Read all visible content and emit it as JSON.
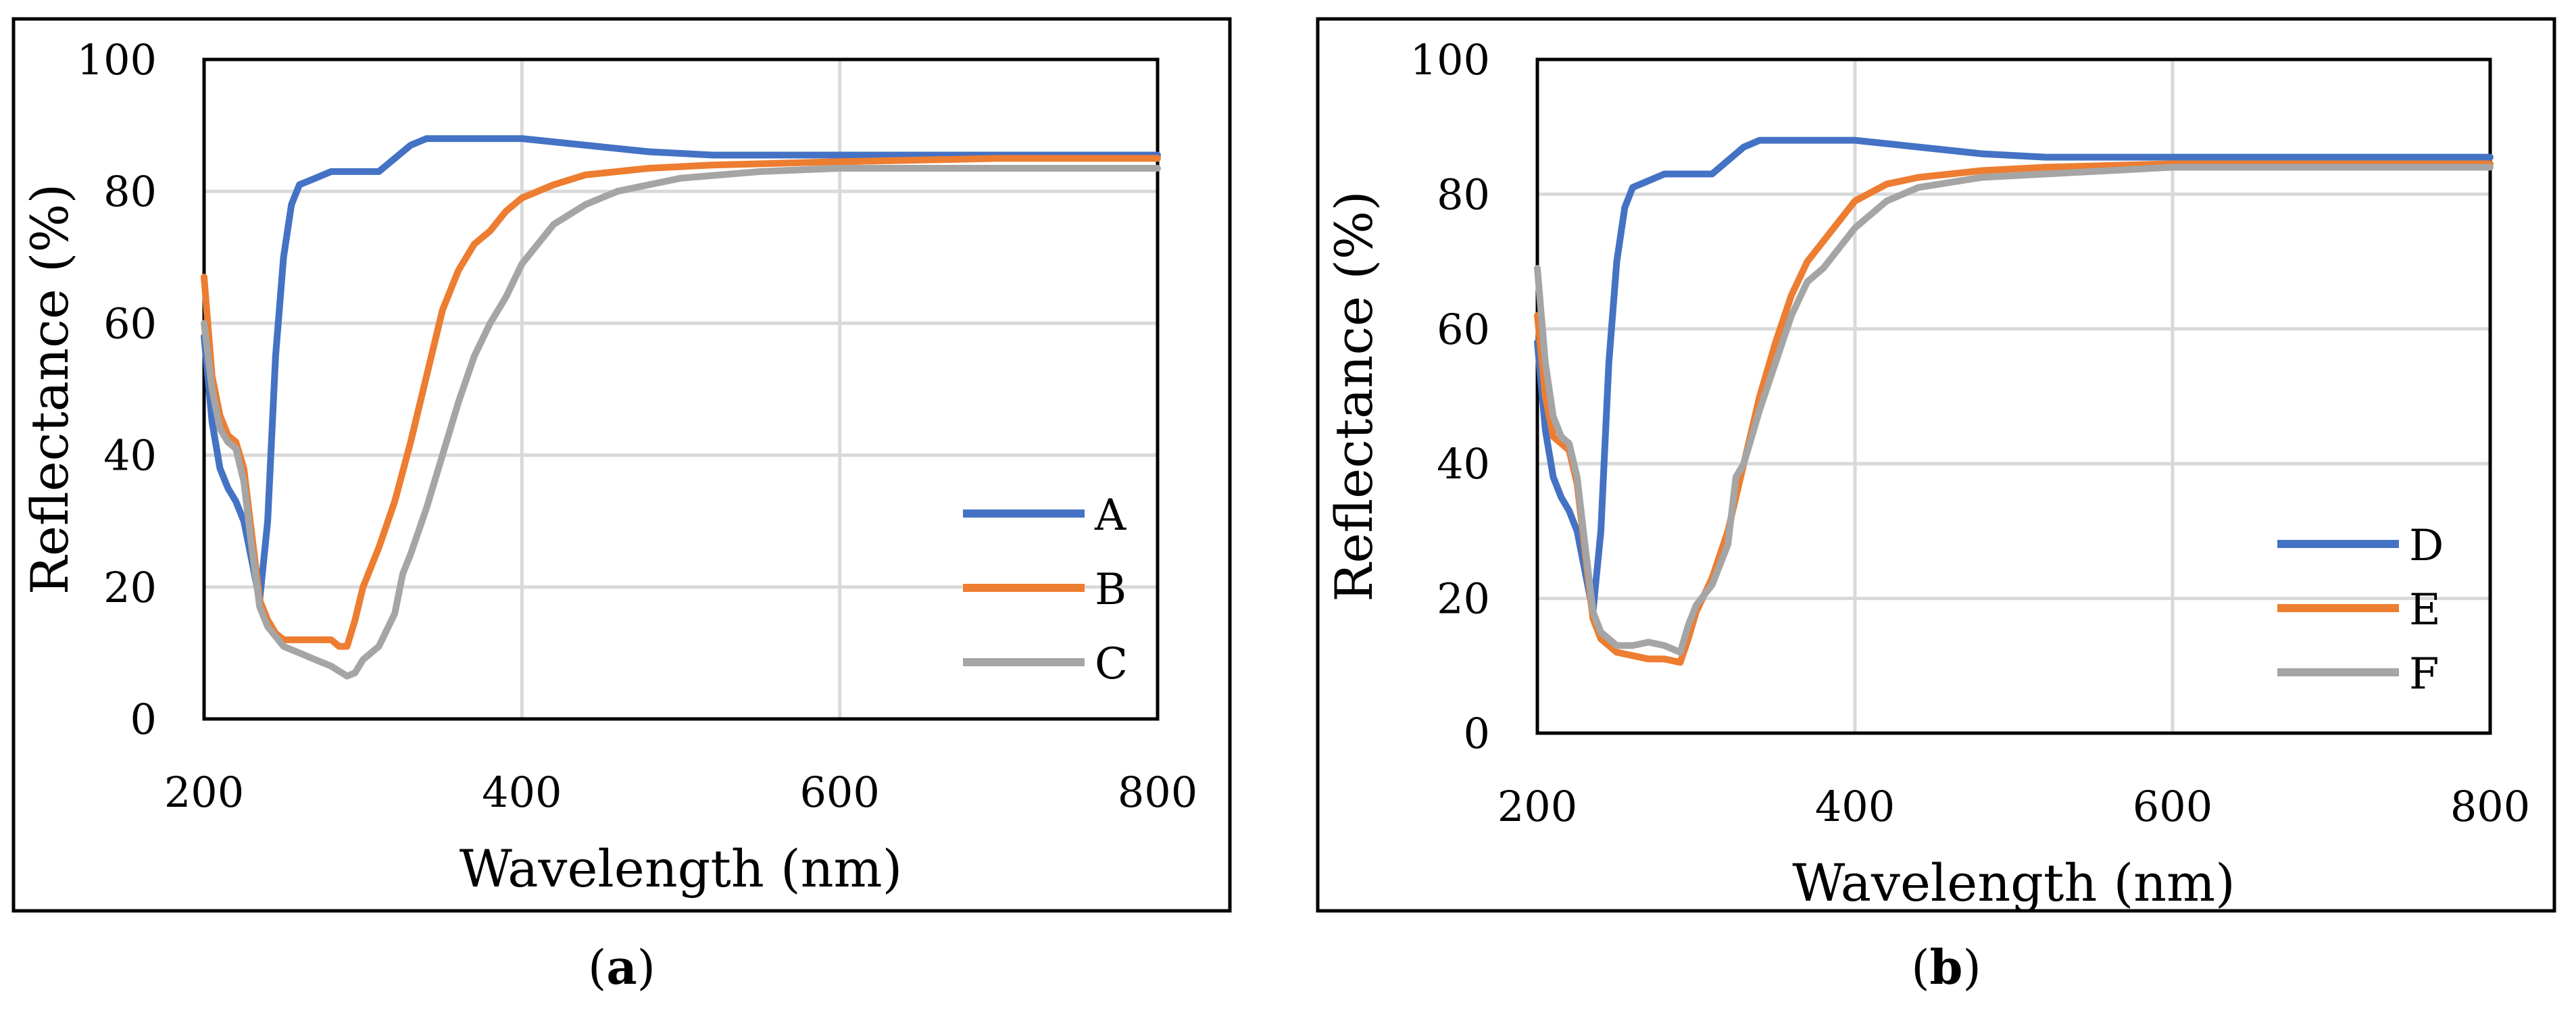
{
  "chart_data": [
    {
      "type": "line",
      "panel_label": "a",
      "title": "",
      "xlabel": "Wavelength (nm)",
      "ylabel": "Reflectance (%)",
      "xlim": [
        200,
        800
      ],
      "ylim": [
        0,
        100
      ],
      "xticks": [
        200,
        400,
        600,
        800
      ],
      "yticks": [
        0,
        20,
        40,
        60,
        80,
        100
      ],
      "grid": true,
      "legend": "bottom-right",
      "series": [
        {
          "name": "A",
          "color": "#4472C4",
          "points": [
            [
              200,
              58
            ],
            [
              205,
              45
            ],
            [
              210,
              38
            ],
            [
              215,
              35
            ],
            [
              220,
              33
            ],
            [
              225,
              30
            ],
            [
              230,
              24
            ],
            [
              235,
              18
            ],
            [
              240,
              30
            ],
            [
              245,
              55
            ],
            [
              250,
              70
            ],
            [
              255,
              78
            ],
            [
              260,
              81
            ],
            [
              270,
              82
            ],
            [
              280,
              83
            ],
            [
              290,
              83
            ],
            [
              300,
              83
            ],
            [
              310,
              83
            ],
            [
              320,
              85
            ],
            [
              330,
              87
            ],
            [
              340,
              88
            ],
            [
              360,
              88
            ],
            [
              400,
              88
            ],
            [
              440,
              87
            ],
            [
              480,
              86
            ],
            [
              520,
              85.5
            ],
            [
              600,
              85.5
            ],
            [
              700,
              85.5
            ],
            [
              800,
              85.5
            ]
          ]
        },
        {
          "name": "B",
          "color": "#ED7D31",
          "points": [
            [
              200,
              67
            ],
            [
              205,
              52
            ],
            [
              210,
              46
            ],
            [
              215,
              43
            ],
            [
              220,
              42
            ],
            [
              225,
              38
            ],
            [
              230,
              28
            ],
            [
              235,
              18
            ],
            [
              240,
              15
            ],
            [
              245,
              13
            ],
            [
              250,
              12
            ],
            [
              260,
              12
            ],
            [
              270,
              12
            ],
            [
              280,
              12
            ],
            [
              285,
              11
            ],
            [
              290,
              11
            ],
            [
              295,
              15
            ],
            [
              300,
              20
            ],
            [
              310,
              26
            ],
            [
              320,
              33
            ],
            [
              330,
              42
            ],
            [
              340,
              52
            ],
            [
              350,
              62
            ],
            [
              360,
              68
            ],
            [
              370,
              72
            ],
            [
              380,
              74
            ],
            [
              390,
              77
            ],
            [
              400,
              79
            ],
            [
              420,
              81
            ],
            [
              440,
              82.5
            ],
            [
              480,
              83.5
            ],
            [
              520,
              84
            ],
            [
              600,
              84.5
            ],
            [
              700,
              85
            ],
            [
              800,
              85
            ]
          ]
        },
        {
          "name": "C",
          "color": "#A5A5A5",
          "points": [
            [
              200,
              60
            ],
            [
              205,
              50
            ],
            [
              210,
              44
            ],
            [
              215,
              42
            ],
            [
              220,
              41
            ],
            [
              225,
              36
            ],
            [
              230,
              26
            ],
            [
              235,
              17
            ],
            [
              240,
              14
            ],
            [
              250,
              11
            ],
            [
              260,
              10
            ],
            [
              270,
              9
            ],
            [
              280,
              8
            ],
            [
              290,
              6.5
            ],
            [
              295,
              7
            ],
            [
              300,
              9
            ],
            [
              310,
              11
            ],
            [
              320,
              16
            ],
            [
              325,
              22
            ],
            [
              330,
              25
            ],
            [
              340,
              32
            ],
            [
              350,
              40
            ],
            [
              360,
              48
            ],
            [
              370,
              55
            ],
            [
              380,
              60
            ],
            [
              390,
              64
            ],
            [
              400,
              69
            ],
            [
              420,
              75
            ],
            [
              440,
              78
            ],
            [
              460,
              80
            ],
            [
              480,
              81
            ],
            [
              500,
              82
            ],
            [
              550,
              83
            ],
            [
              600,
              83.5
            ],
            [
              700,
              83.5
            ],
            [
              800,
              83.5
            ]
          ]
        }
      ]
    },
    {
      "type": "line",
      "panel_label": "b",
      "title": "",
      "xlabel": "Wavelength (nm)",
      "ylabel": "Reflectance (%)",
      "xlim": [
        200,
        800
      ],
      "ylim": [
        0,
        100
      ],
      "xticks": [
        200,
        400,
        600,
        800
      ],
      "yticks": [
        0,
        20,
        40,
        60,
        80,
        100
      ],
      "grid": true,
      "legend": "bottom-right",
      "series": [
        {
          "name": "D",
          "color": "#4472C4",
          "points": [
            [
              200,
              58
            ],
            [
              205,
              45
            ],
            [
              210,
              38
            ],
            [
              215,
              35
            ],
            [
              220,
              33
            ],
            [
              225,
              30
            ],
            [
              230,
              24
            ],
            [
              235,
              18
            ],
            [
              240,
              30
            ],
            [
              245,
              55
            ],
            [
              250,
              70
            ],
            [
              255,
              78
            ],
            [
              260,
              81
            ],
            [
              270,
              82
            ],
            [
              280,
              83
            ],
            [
              290,
              83
            ],
            [
              300,
              83
            ],
            [
              310,
              83
            ],
            [
              320,
              85
            ],
            [
              330,
              87
            ],
            [
              340,
              88
            ],
            [
              360,
              88
            ],
            [
              400,
              88
            ],
            [
              440,
              87
            ],
            [
              480,
              86
            ],
            [
              520,
              85.5
            ],
            [
              600,
              85.5
            ],
            [
              700,
              85.5
            ],
            [
              800,
              85.5
            ]
          ]
        },
        {
          "name": "E",
          "color": "#ED7D31",
          "points": [
            [
              200,
              62
            ],
            [
              205,
              50
            ],
            [
              210,
              44
            ],
            [
              215,
              43
            ],
            [
              220,
              42
            ],
            [
              225,
              37
            ],
            [
              230,
              27
            ],
            [
              235,
              17
            ],
            [
              240,
              14
            ],
            [
              250,
              12
            ],
            [
              260,
              11.5
            ],
            [
              270,
              11
            ],
            [
              280,
              11
            ],
            [
              290,
              10.5
            ],
            [
              295,
              14
            ],
            [
              300,
              18
            ],
            [
              310,
              23
            ],
            [
              320,
              30
            ],
            [
              330,
              40
            ],
            [
              340,
              50
            ],
            [
              350,
              58
            ],
            [
              360,
              65
            ],
            [
              370,
              70
            ],
            [
              380,
              73
            ],
            [
              390,
              76
            ],
            [
              400,
              79
            ],
            [
              420,
              81.5
            ],
            [
              440,
              82.5
            ],
            [
              480,
              83.5
            ],
            [
              520,
              84
            ],
            [
              600,
              84.5
            ],
            [
              700,
              84.5
            ],
            [
              800,
              84.5
            ]
          ]
        },
        {
          "name": "F",
          "color": "#A5A5A5",
          "points": [
            [
              200,
              69
            ],
            [
              205,
              55
            ],
            [
              210,
              47
            ],
            [
              215,
              44
            ],
            [
              220,
              43
            ],
            [
              225,
              38
            ],
            [
              230,
              28
            ],
            [
              235,
              18
            ],
            [
              240,
              15
            ],
            [
              250,
              13
            ],
            [
              260,
              13
            ],
            [
              270,
              13.5
            ],
            [
              280,
              13
            ],
            [
              290,
              12
            ],
            [
              295,
              16
            ],
            [
              300,
              19
            ],
            [
              310,
              22
            ],
            [
              320,
              28
            ],
            [
              325,
              38
            ],
            [
              330,
              40
            ],
            [
              340,
              48
            ],
            [
              350,
              55
            ],
            [
              360,
              62
            ],
            [
              370,
              67
            ],
            [
              380,
              69
            ],
            [
              390,
              72
            ],
            [
              400,
              75
            ],
            [
              420,
              79
            ],
            [
              440,
              81
            ],
            [
              480,
              82.5
            ],
            [
              520,
              83
            ],
            [
              600,
              84
            ],
            [
              700,
              84
            ],
            [
              800,
              84
            ]
          ]
        }
      ]
    }
  ],
  "captions": {
    "a": "a",
    "b": "b"
  }
}
